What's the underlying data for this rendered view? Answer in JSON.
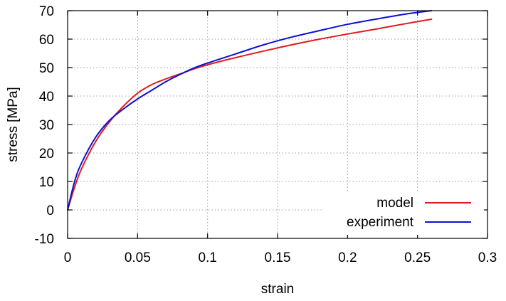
{
  "chart_data": {
    "type": "line",
    "xlabel": "strain",
    "ylabel": "stress [MPa]",
    "xlim": [
      0,
      0.3
    ],
    "ylim": [
      -10,
      70
    ],
    "x_ticks": [
      "0",
      "0.05",
      "0.1",
      "0.15",
      "0.2",
      "0.25",
      "0.3"
    ],
    "y_ticks": [
      "-10",
      "0",
      "10",
      "20",
      "30",
      "40",
      "50",
      "60",
      "70"
    ],
    "grid": true,
    "legend_position": "bottom-right",
    "series": [
      {
        "name": "model",
        "color": "#e31a1c",
        "x": [
          0,
          0.005,
          0.01,
          0.02,
          0.03,
          0.04,
          0.05,
          0.06,
          0.07,
          0.08,
          0.09,
          0.1,
          0.12,
          0.14,
          0.16,
          0.18,
          0.2,
          0.22,
          0.24,
          0.26
        ],
        "y": [
          0,
          8,
          14.5,
          24,
          31,
          36.5,
          41,
          44,
          46,
          47.7,
          49.5,
          51,
          53.5,
          55.8,
          58,
          60,
          61.8,
          63.5,
          65.3,
          67
        ]
      },
      {
        "name": "experiment",
        "color": "#0a12d6",
        "x": [
          0,
          0.005,
          0.01,
          0.02,
          0.03,
          0.04,
          0.05,
          0.06,
          0.07,
          0.08,
          0.09,
          0.1,
          0.12,
          0.14,
          0.16,
          0.18,
          0.2,
          0.22,
          0.24,
          0.26
        ],
        "y": [
          0,
          10,
          16.5,
          25.5,
          31.5,
          35.5,
          39,
          42,
          45,
          47.5,
          49.8,
          51.6,
          54.8,
          58,
          60.7,
          63,
          65.2,
          67,
          68.7,
          70
        ]
      }
    ]
  }
}
